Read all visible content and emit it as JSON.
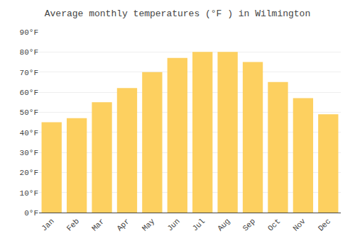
{
  "chart_data": {
    "type": "bar",
    "title": "Average monthly temperatures (°F ) in Wilmington",
    "categories": [
      "Jan",
      "Feb",
      "Mar",
      "Apr",
      "May",
      "Jun",
      "Jul",
      "Aug",
      "Sep",
      "Oct",
      "Nov",
      "Dec"
    ],
    "values": [
      45,
      47,
      55,
      62,
      70,
      77,
      80,
      80,
      75,
      65,
      57,
      49
    ],
    "color": "#FDD060",
    "ylim": [
      0,
      90
    ],
    "yticks": [
      {
        "value": 0,
        "label": "0°F"
      },
      {
        "value": 10,
        "label": "10°F"
      },
      {
        "value": 20,
        "label": "20°F"
      },
      {
        "value": 30,
        "label": "30°F"
      },
      {
        "value": 40,
        "label": "40°F"
      },
      {
        "value": 50,
        "label": "50°F"
      },
      {
        "value": 60,
        "label": "60°F"
      },
      {
        "value": 70,
        "label": "70°F"
      },
      {
        "value": 80,
        "label": "80°F"
      },
      {
        "value": 90,
        "label": "90°F"
      }
    ],
    "grid": true
  }
}
